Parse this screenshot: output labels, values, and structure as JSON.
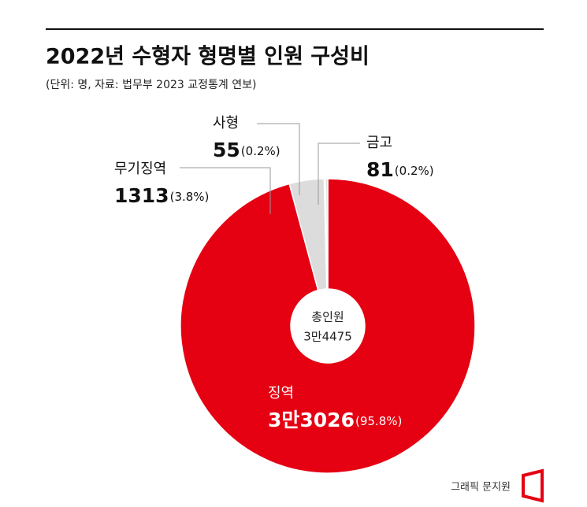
{
  "chart_data": {
    "type": "donut",
    "title": "2022년 수형자 형명별 인원 구성비",
    "subtitle": "(단위: 명, 자료: 법무부 2023 교정통계 연보)",
    "categories": [
      "징역",
      "무기징역",
      "사형",
      "금고"
    ],
    "values": [
      33026,
      1313,
      55,
      81
    ],
    "value_labels": [
      "3만3026",
      "1313",
      "55",
      "81"
    ],
    "percent_labels": [
      "(95.8%)",
      "(3.8%)",
      "(0.2%)",
      "(0.2%)"
    ],
    "colors": [
      "#e50012",
      "#dcdcdc",
      "#dcdcdc",
      "#dcdcdc"
    ],
    "center_title": "총인원",
    "center_text": "3만4475",
    "credit": "그래픽 문지원"
  }
}
